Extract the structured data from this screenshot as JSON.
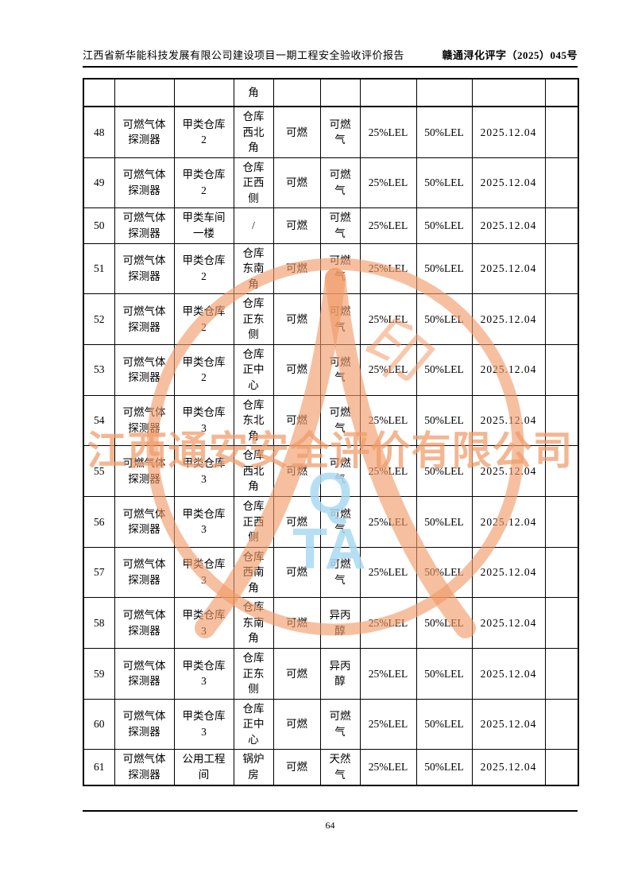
{
  "header": {
    "title": "江西省新华能科技发展有限公司建设项目一期工程安全验收评价报告",
    "doc_number": "赣通浔化评字（2025）045号"
  },
  "table": {
    "columns": [
      "no",
      "device",
      "area",
      "location",
      "medium",
      "gas",
      "alarm_low",
      "alarm_high",
      "date",
      "note"
    ],
    "carryover_row": {
      "no": "",
      "device": "",
      "area": "",
      "location": "角",
      "medium": "",
      "gas": "",
      "alarm_low": "",
      "alarm_high": "",
      "date": "",
      "note": ""
    },
    "rows": [
      {
        "no": "48",
        "device": "可燃气体\n探测器",
        "area": "甲类仓库\n2",
        "location": "仓库\n西北\n角",
        "medium": "可燃",
        "gas": "可燃\n气",
        "alarm_low": "25%LEL",
        "alarm_high": "50%LEL",
        "date": "2025.12.04",
        "note": ""
      },
      {
        "no": "49",
        "device": "可燃气体\n探测器",
        "area": "甲类仓库\n2",
        "location": "仓库\n正西\n侧",
        "medium": "可燃",
        "gas": "可燃\n气",
        "alarm_low": "25%LEL",
        "alarm_high": "50%LEL",
        "date": "2025.12.04",
        "note": ""
      },
      {
        "no": "50",
        "device": "可燃气体\n探测器",
        "area": "甲类车间\n一楼",
        "location": "/",
        "medium": "可燃",
        "gas": "可燃\n气",
        "alarm_low": "25%LEL",
        "alarm_high": "50%LEL",
        "date": "2025.12.04",
        "note": ""
      },
      {
        "no": "51",
        "device": "可燃气体\n探测器",
        "area": "甲类仓库\n2",
        "location": "仓库\n东南\n角",
        "medium": "可燃",
        "gas": "可燃\n气",
        "alarm_low": "25%LEL",
        "alarm_high": "50%LEL",
        "date": "2025.12.04",
        "note": ""
      },
      {
        "no": "52",
        "device": "可燃气体\n探测器",
        "area": "甲类仓库\n2",
        "location": "仓库\n正东\n侧",
        "medium": "可燃",
        "gas": "可燃\n气",
        "alarm_low": "25%LEL",
        "alarm_high": "50%LEL",
        "date": "2025.12.04",
        "note": ""
      },
      {
        "no": "53",
        "device": "可燃气体\n探测器",
        "area": "甲类仓库\n2",
        "location": "仓库\n正中\n心",
        "medium": "可燃",
        "gas": "可燃\n气",
        "alarm_low": "25%LEL",
        "alarm_high": "50%LEL",
        "date": "2025.12.04",
        "note": ""
      },
      {
        "no": "54",
        "device": "可燃气体\n探测器",
        "area": "甲类仓库\n3",
        "location": "仓库\n东北\n角",
        "medium": "可燃",
        "gas": "可燃\n气",
        "alarm_low": "25%LEL",
        "alarm_high": "50%LEL",
        "date": "2025.12.04",
        "note": ""
      },
      {
        "no": "55",
        "device": "可燃气体\n探测器",
        "area": "甲类仓库\n3",
        "location": "仓库\n西北\n角",
        "medium": "可燃",
        "gas": "可燃\n气",
        "alarm_low": "25%LEL",
        "alarm_high": "50%LEL",
        "date": "2025.12.04",
        "note": ""
      },
      {
        "no": "56",
        "device": "可燃气体\n探测器",
        "area": "甲类仓库\n3",
        "location": "仓库\n正西\n侧",
        "medium": "可燃",
        "gas": "可燃\n气",
        "alarm_low": "25%LEL",
        "alarm_high": "50%LEL",
        "date": "2025.12.04",
        "note": ""
      },
      {
        "no": "57",
        "device": "可燃气体\n探测器",
        "area": "甲类仓库\n3",
        "location": "仓库\n西南\n角",
        "medium": "可燃",
        "gas": "可燃\n气",
        "alarm_low": "25%LEL",
        "alarm_high": "50%LEL",
        "date": "2025.12.04",
        "note": ""
      },
      {
        "no": "58",
        "device": "可燃气体\n探测器",
        "area": "甲类仓库\n3",
        "location": "仓库\n东南\n角",
        "medium": "可燃",
        "gas": "异丙\n醇",
        "alarm_low": "25%LEL",
        "alarm_high": "50%LEL",
        "date": "2025.12.04",
        "note": ""
      },
      {
        "no": "59",
        "device": "可燃气体\n探测器",
        "area": "甲类仓库\n3",
        "location": "仓库\n正东\n侧",
        "medium": "可燃",
        "gas": "异丙\n醇",
        "alarm_low": "25%LEL",
        "alarm_high": "50%LEL",
        "date": "2025.12.04",
        "note": ""
      },
      {
        "no": "60",
        "device": "可燃气体\n探测器",
        "area": "甲类仓库\n3",
        "location": "仓库\n正中\n心",
        "medium": "可燃",
        "gas": "可燃\n气",
        "alarm_low": "25%LEL",
        "alarm_high": "50%LEL",
        "date": "2025.12.04",
        "note": ""
      },
      {
        "no": "61",
        "device": "可燃气体\n探测器",
        "area": "公用工程\n间",
        "location": "锅炉\n房",
        "medium": "可燃",
        "gas": "天然\n气",
        "alarm_low": "25%LEL",
        "alarm_high": "50%LEL",
        "date": "2025.12.04",
        "note": ""
      }
    ]
  },
  "watermark": {
    "company_name": "江西通安安全评价有限公司",
    "seal_char": "印",
    "logo_top": "Q",
    "logo_bottom": "TA",
    "orange_color": "#f09a66",
    "blue_color": "#a9d9f2"
  },
  "footer": {
    "page_number": "64"
  }
}
